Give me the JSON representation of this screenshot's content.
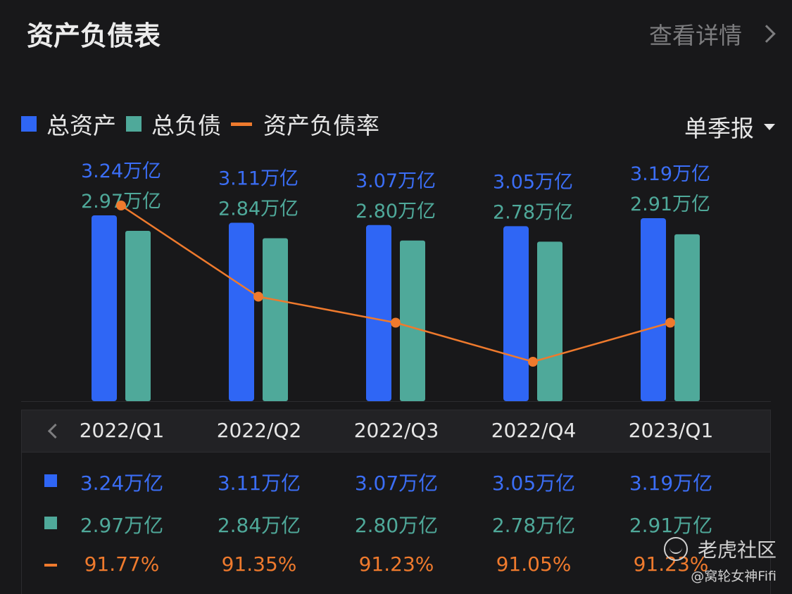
{
  "header": {
    "title": "资产负债表",
    "details_label": "查看详情"
  },
  "legend": {
    "assets": "总资产",
    "liabilities": "总负债",
    "ratio": "资产负债率"
  },
  "period_select": {
    "label": "单季报"
  },
  "colors": {
    "assets": "#2f66f5",
    "liabilities": "#4fa99a",
    "ratio": "#ef7a2d",
    "background": "#18181a"
  },
  "icons": {
    "details": "chevron-right-icon",
    "period": "caret-down-icon",
    "prev": "chevron-left-icon"
  },
  "chart_data": {
    "type": "bar",
    "categories": [
      "2022/Q1",
      "2022/Q2",
      "2022/Q3",
      "2022/Q4",
      "2023/Q1"
    ],
    "series": [
      {
        "name": "总资产",
        "values": [
          3.24,
          3.11,
          3.07,
          3.05,
          3.19
        ],
        "labels": [
          "3.24万亿",
          "3.11万亿",
          "3.07万亿",
          "3.05万亿",
          "3.19万亿"
        ]
      },
      {
        "name": "总负债",
        "values": [
          2.97,
          2.84,
          2.8,
          2.78,
          2.91
        ],
        "labels": [
          "2.97万亿",
          "2.84万亿",
          "2.80万亿",
          "2.78万亿",
          "2.91万亿"
        ]
      },
      {
        "name": "资产负债率",
        "type": "line",
        "values": [
          91.77,
          91.35,
          91.23,
          91.05,
          91.23
        ],
        "labels": [
          "91.77%",
          "91.35%",
          "91.23%",
          "91.05%",
          "91.23%"
        ]
      }
    ],
    "unit": "万亿",
    "grid": false,
    "legend_position": "top-left"
  },
  "table": {
    "headers": [
      "2022/Q1",
      "2022/Q2",
      "2022/Q3",
      "2022/Q4",
      "2023/Q1"
    ],
    "rows": [
      {
        "series": "assets",
        "cells": [
          "3.24万亿",
          "3.11万亿",
          "3.07万亿",
          "3.05万亿",
          "3.19万亿"
        ]
      },
      {
        "series": "liabilities",
        "cells": [
          "2.97万亿",
          "2.84万亿",
          "2.80万亿",
          "2.78万亿",
          "2.91万亿"
        ]
      },
      {
        "series": "ratio",
        "cells": [
          "91.77%",
          "91.35%",
          "91.23%",
          "91.05%",
          "91.23%"
        ]
      }
    ]
  },
  "watermark": {
    "brand": "老虎社区",
    "user": "@窝轮女神Fifi"
  }
}
